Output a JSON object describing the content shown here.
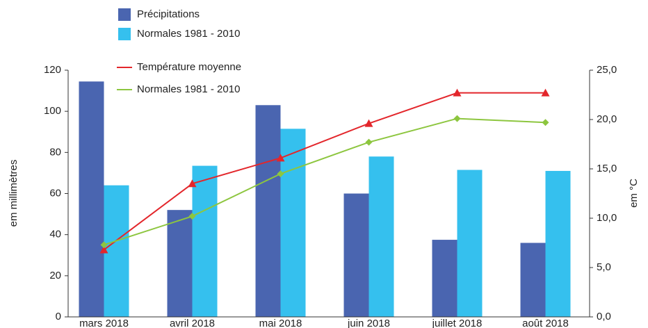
{
  "chart_data": {
    "type": "bar-line",
    "categories": [
      "mars 2018",
      "avril 2018",
      "mai 2018",
      "juin 2018",
      "juillet 2018",
      "août 2018"
    ],
    "series": [
      {
        "name": "Précipitations",
        "type": "bar",
        "color": "#4a65b0",
        "values": [
          114.5,
          52,
          103,
          60,
          37.5,
          36
        ]
      },
      {
        "name": "Normales 1981 - 2010",
        "type": "bar",
        "color": "#35c0ee",
        "values": [
          64,
          73.5,
          91.5,
          78,
          71.5,
          71
        ]
      },
      {
        "name": "Température moyenne",
        "type": "line",
        "axis": "y2",
        "color": "#e3262b",
        "marker": "triangle",
        "values": [
          6.8,
          13.5,
          16.1,
          19.6,
          22.7,
          22.7
        ]
      },
      {
        "name": "Normales 1981 - 2010",
        "type": "line",
        "axis": "y2",
        "color": "#8dc63f",
        "marker": "diamond",
        "values": [
          7.3,
          10.2,
          14.5,
          17.7,
          20.1,
          19.7
        ]
      }
    ],
    "ylabel": "em millimètres",
    "y2label": "em °C",
    "ylim": [
      0,
      120
    ],
    "yticks": [
      0,
      20,
      40,
      60,
      80,
      100,
      120
    ],
    "y2lim": [
      0,
      25
    ],
    "y2ticks": [
      {
        "value": 0,
        "label": "0,0"
      },
      {
        "value": 5,
        "label": "5,0"
      },
      {
        "value": 10,
        "label": "10,0"
      },
      {
        "value": 15,
        "label": "15,0"
      },
      {
        "value": 20,
        "label": "20,0"
      },
      {
        "value": 25,
        "label": "25,0"
      }
    ],
    "legend": "top"
  }
}
